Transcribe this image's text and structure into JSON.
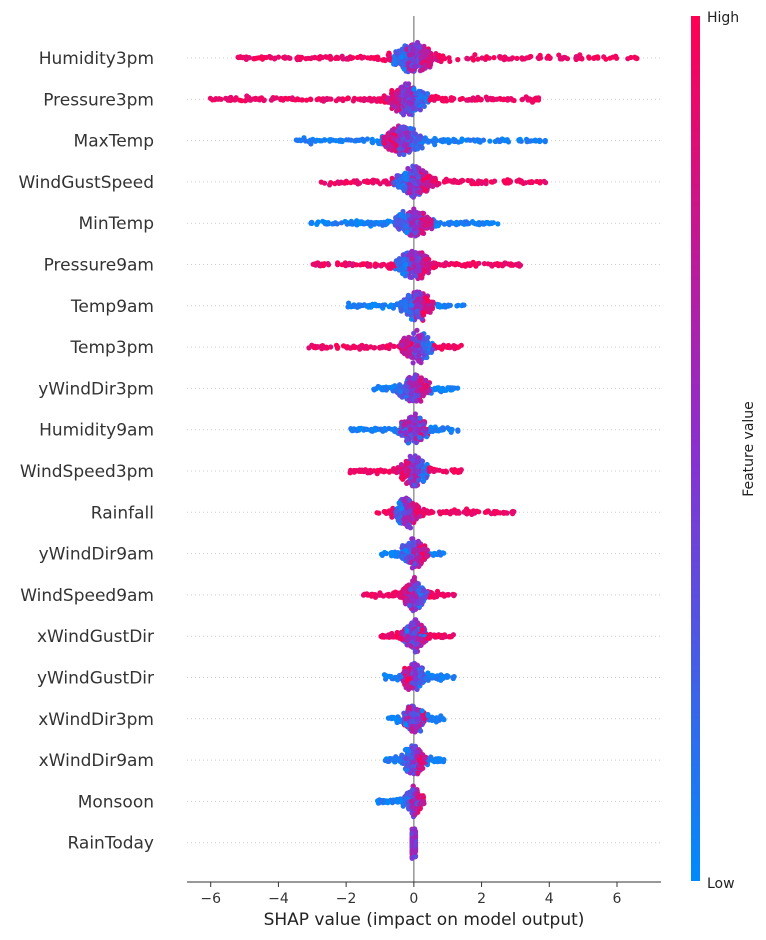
{
  "chart_data": {
    "type": "scatter",
    "subtype": "shap-beeswarm",
    "title": "",
    "xlabel": "SHAP value (impact on model output)",
    "xlim": [
      -6.7,
      7.3
    ],
    "xticks": [
      -6,
      -4,
      -2,
      0,
      2,
      4,
      6
    ],
    "colorbar": {
      "label": "Feature value",
      "high_label": "High",
      "low_label": "Low",
      "high_color": "#ff0052",
      "low_color": "#008bfb"
    },
    "features": [
      {
        "name": "Humidity3pm",
        "min": -5.2,
        "max": 6.6,
        "peak": 0.0,
        "width": 0.28,
        "high_side": "right",
        "tail_color": "high"
      },
      {
        "name": "Pressure3pm",
        "min": -6.1,
        "max": 3.7,
        "peak": -0.2,
        "width": 0.25,
        "high_side": "left",
        "tail_color": "high"
      },
      {
        "name": "MaxTemp",
        "min": -3.5,
        "max": 3.9,
        "peak": -0.3,
        "width": 0.24,
        "high_side": "left",
        "tail_color": "low"
      },
      {
        "name": "WindGustSpeed",
        "min": -2.8,
        "max": 3.9,
        "peak": 0.0,
        "width": 0.24,
        "high_side": "right",
        "tail_color": "high"
      },
      {
        "name": "MinTemp",
        "min": -3.1,
        "max": 2.5,
        "peak": 0.0,
        "width": 0.22,
        "high_side": "right",
        "tail_color": "low"
      },
      {
        "name": "Pressure9am",
        "min": -3.0,
        "max": 3.2,
        "peak": 0.0,
        "width": 0.22,
        "high_side": "right",
        "tail_color": "high"
      },
      {
        "name": "Temp9am",
        "min": -2.0,
        "max": 1.5,
        "peak": 0.1,
        "width": 0.19,
        "high_side": "right",
        "tail_color": "low"
      },
      {
        "name": "Temp3pm",
        "min": -3.1,
        "max": 1.5,
        "peak": 0.1,
        "width": 0.2,
        "high_side": "left",
        "tail_color": "high"
      },
      {
        "name": "yWindDir3pm",
        "min": -1.2,
        "max": 1.3,
        "peak": 0.0,
        "width": 0.2,
        "high_side": "right",
        "tail_color": "low"
      },
      {
        "name": "Humidity9am",
        "min": -1.9,
        "max": 1.4,
        "peak": 0.0,
        "width": 0.18,
        "high_side": "mixed",
        "tail_color": "low"
      },
      {
        "name": "WindSpeed3pm",
        "min": -1.9,
        "max": 1.5,
        "peak": 0.0,
        "width": 0.18,
        "high_side": "left",
        "tail_color": "high"
      },
      {
        "name": "Rainfall",
        "min": -1.1,
        "max": 3.0,
        "peak": -0.2,
        "width": 0.16,
        "high_side": "right",
        "tail_color": "high"
      },
      {
        "name": "yWindDir9am",
        "min": -1.0,
        "max": 0.9,
        "peak": 0.0,
        "width": 0.17,
        "high_side": "right",
        "tail_color": "low"
      },
      {
        "name": "WindSpeed9am",
        "min": -1.5,
        "max": 1.2,
        "peak": 0.0,
        "width": 0.16,
        "high_side": "left",
        "tail_color": "high"
      },
      {
        "name": "xWindGustDir",
        "min": -1.0,
        "max": 1.2,
        "peak": 0.0,
        "width": 0.16,
        "high_side": "mixed",
        "tail_color": "high"
      },
      {
        "name": "yWindGustDir",
        "min": -0.9,
        "max": 1.2,
        "peak": 0.0,
        "width": 0.15,
        "high_side": "left",
        "tail_color": "low"
      },
      {
        "name": "xWindDir3pm",
        "min": -0.8,
        "max": 0.9,
        "peak": 0.0,
        "width": 0.15,
        "high_side": "mixed",
        "tail_color": "low"
      },
      {
        "name": "xWindDir9am",
        "min": -0.9,
        "max": 0.9,
        "peak": 0.0,
        "width": 0.15,
        "high_side": "right",
        "tail_color": "low"
      },
      {
        "name": "Monsoon",
        "min": -1.1,
        "max": 0.3,
        "peak": 0.0,
        "width": 0.12,
        "high_side": "right",
        "tail_color": "low"
      },
      {
        "name": "RainToday",
        "min": -0.05,
        "max": 0.05,
        "peak": 0.0,
        "width": 0.1,
        "high_side": "mixed",
        "tail_color": "low"
      }
    ]
  }
}
